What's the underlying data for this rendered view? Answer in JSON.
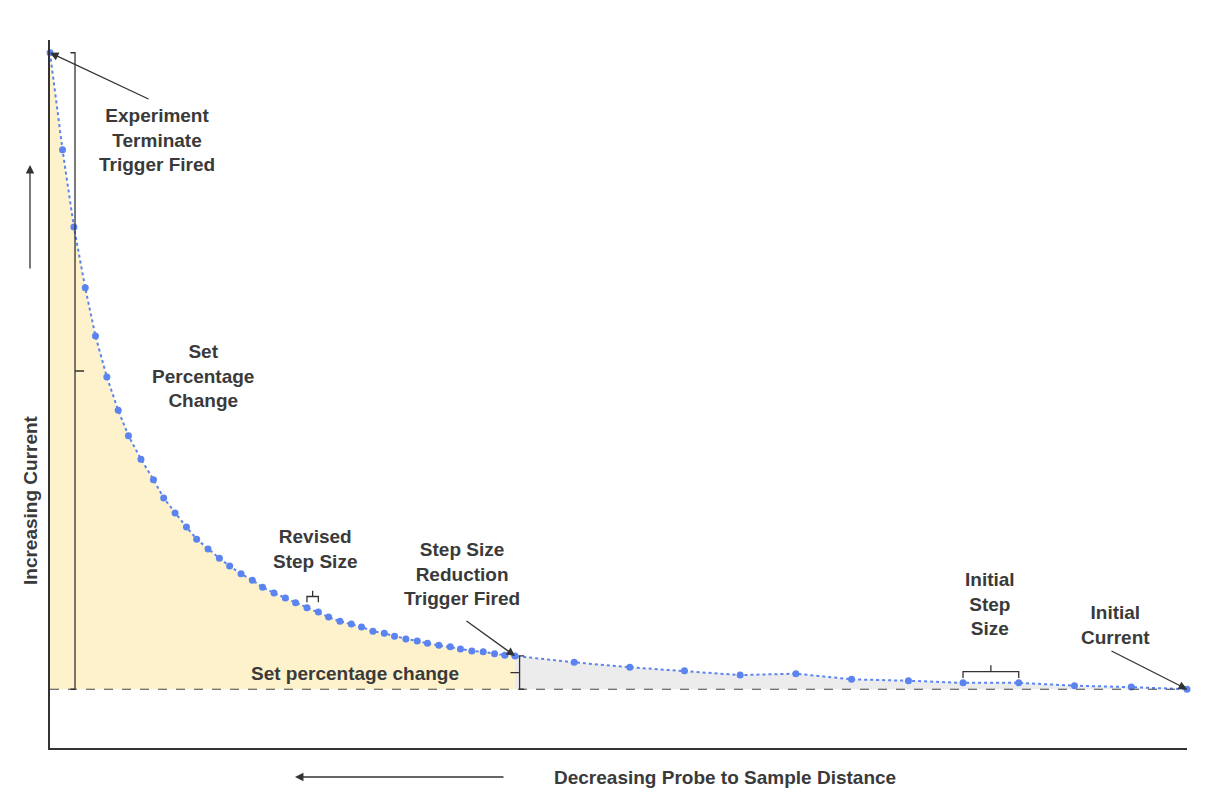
{
  "chart_data": {
    "type": "scatter",
    "x_label": "Decreasing Probe to Sample Distance",
    "y_label": "Increasing Current",
    "x": [
      0,
      1.1,
      2.1,
      3.1,
      4.0,
      5.0,
      6.0,
      6.9,
      8.0,
      9.1,
      10.0,
      11.0,
      12.0,
      12.9,
      13.9,
      14.9,
      15.8,
      16.8,
      17.8,
      18.7,
      19.7,
      20.7,
      21.6,
      22.6,
      23.6,
      24.5,
      25.5,
      26.5,
      27.4,
      28.4,
      29.4,
      30.3,
      31.3,
      32.3,
      33.2,
      34.2,
      35.2,
      36.1,
      37.1,
      38.1,
      39.1,
      40.0,
      40.9,
      46.1,
      51.0,
      55.8,
      60.7,
      65.6,
      70.5,
      75.5,
      80.3,
      85.2,
      90.1,
      95.1,
      100
    ],
    "values": [
      98.2,
      84.5,
      73.6,
      65.0,
      58.2,
      52.4,
      47.7,
      44.1,
      40.8,
      37.9,
      35.3,
      33.2,
      31.2,
      29.5,
      28.1,
      26.8,
      25.7,
      24.6,
      23.7,
      22.7,
      21.9,
      21.2,
      20.5,
      19.8,
      19.2,
      18.5,
      17.9,
      17.5,
      17.1,
      16.5,
      16.2,
      15.8,
      15.4,
      15.1,
      14.8,
      14.5,
      14.3,
      14.0,
      13.7,
      13.6,
      13.3,
      13.1,
      13.0,
      12.1,
      11.4,
      10.9,
      10.3,
      10.5,
      9.7,
      9.5,
      9.2,
      9.2,
      8.8,
      8.6,
      8.3
    ],
    "xlim": [
      0,
      100
    ],
    "ylim": [
      0,
      100
    ],
    "tick_labels": false,
    "grid": false,
    "color": "#5b84f0",
    "marker": "circle",
    "line_style": "dotted",
    "annotations": [
      [
        "Experiment",
        "Terminate",
        "Trigger Fired"
      ],
      [
        "Set",
        "Percentage",
        "Change"
      ],
      [
        "Revised",
        "Step Size"
      ],
      [
        "Step Size",
        "Reduction",
        "Trigger Fired"
      ],
      [
        "Set percentage change"
      ],
      [
        "Initial",
        "Step",
        "Size"
      ],
      [
        "Initial",
        "Current"
      ]
    ]
  }
}
